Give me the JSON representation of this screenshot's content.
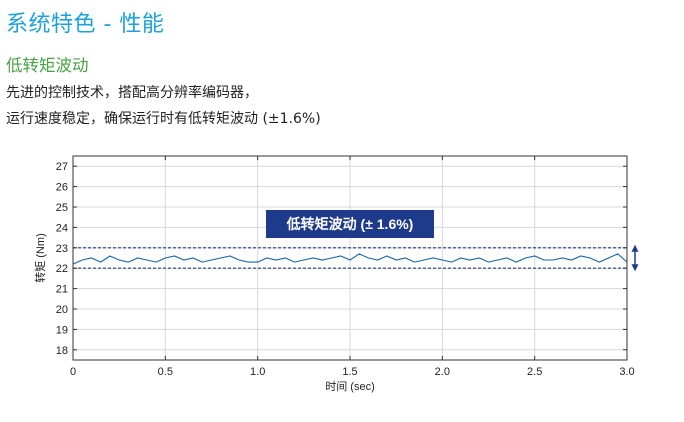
{
  "header": {
    "title": "系统特色 - 性能",
    "subtitle": "低转矩波动"
  },
  "description": {
    "line1": "先进的控制技术，搭配高分辨率编码器，",
    "line2": "运行速度稳定，确保运行时有低转矩波动 (±1.6%)"
  },
  "colors": {
    "title": "#1ba1dc",
    "subtitle": "#45a342",
    "trace": "#1565a8",
    "band": "#1e3a8a",
    "callout_bg": "#1e3a8a",
    "callout_text": "#ffffff",
    "grid": "#d8d8d8"
  },
  "chart_data": {
    "type": "line",
    "xlabel": "时间 (sec)",
    "ylabel": "转矩 (Nm)",
    "xlim": [
      0,
      3.0
    ],
    "ylim": [
      17.5,
      27.5
    ],
    "xticks": [
      0,
      0.5,
      1.0,
      1.5,
      2.0,
      2.5,
      3.0
    ],
    "xtick_labels": [
      "0",
      "0.5",
      "1.0",
      "1.5",
      "2.0",
      "2.5",
      "3.0"
    ],
    "yticks": [
      18,
      19,
      20,
      21,
      22,
      23,
      24,
      25,
      26,
      27
    ],
    "ytick_labels": [
      "18",
      "19",
      "20",
      "21",
      "22",
      "23",
      "24",
      "25",
      "26",
      "27"
    ],
    "grid": true,
    "band": {
      "upper": 23.0,
      "lower": 22.0
    },
    "callout": "低转矩波动 (± 1.6%)",
    "series": [
      {
        "x": [
          0.0,
          0.05,
          0.1,
          0.15,
          0.2,
          0.25,
          0.3,
          0.35,
          0.4,
          0.45,
          0.5,
          0.55,
          0.6,
          0.65,
          0.7,
          0.75,
          0.8,
          0.85,
          0.9,
          0.95,
          1.0,
          1.05,
          1.1,
          1.15,
          1.2,
          1.25,
          1.3,
          1.35,
          1.4,
          1.45,
          1.5,
          1.55,
          1.6,
          1.65,
          1.7,
          1.75,
          1.8,
          1.85,
          1.9,
          1.95,
          2.0,
          2.05,
          2.1,
          2.15,
          2.2,
          2.25,
          2.3,
          2.35,
          2.4,
          2.45,
          2.5,
          2.55,
          2.6,
          2.65,
          2.7,
          2.75,
          2.8,
          2.85,
          2.9,
          2.95,
          3.0
        ],
        "values": [
          22.2,
          22.4,
          22.5,
          22.3,
          22.6,
          22.4,
          22.3,
          22.5,
          22.4,
          22.3,
          22.5,
          22.6,
          22.4,
          22.5,
          22.3,
          22.4,
          22.5,
          22.6,
          22.4,
          22.3,
          22.3,
          22.5,
          22.4,
          22.5,
          22.3,
          22.4,
          22.5,
          22.4,
          22.5,
          22.6,
          22.4,
          22.7,
          22.5,
          22.4,
          22.6,
          22.4,
          22.5,
          22.3,
          22.4,
          22.5,
          22.4,
          22.3,
          22.5,
          22.4,
          22.5,
          22.3,
          22.4,
          22.5,
          22.3,
          22.5,
          22.6,
          22.4,
          22.4,
          22.5,
          22.4,
          22.6,
          22.5,
          22.3,
          22.5,
          22.7,
          22.3
        ]
      }
    ]
  }
}
